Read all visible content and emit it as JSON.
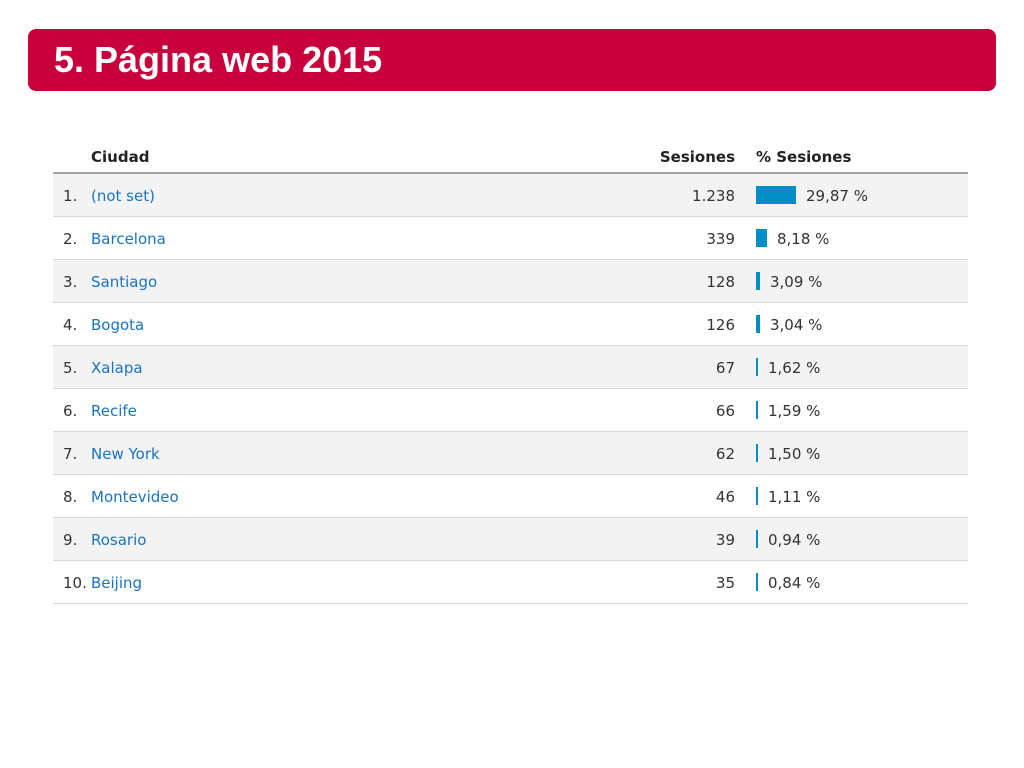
{
  "slide": {
    "title": "5. Página web 2015",
    "accent_color": "#c8003c"
  },
  "table": {
    "headers": {
      "city": "Ciudad",
      "sessions": "Sesiones",
      "percent": "% Sesiones"
    },
    "bar_color": "#058dc7",
    "link_color": "#1a73c2",
    "rows": [
      {
        "rank": "1.",
        "city": "(not set)",
        "sessions": "1.238",
        "percent": "29,87 %",
        "share": 29.87
      },
      {
        "rank": "2.",
        "city": "Barcelona",
        "sessions": "339",
        "percent": "8,18 %",
        "share": 8.18
      },
      {
        "rank": "3.",
        "city": "Santiago",
        "sessions": "128",
        "percent": "3,09 %",
        "share": 3.09
      },
      {
        "rank": "4.",
        "city": "Bogota",
        "sessions": "126",
        "percent": "3,04 %",
        "share": 3.04
      },
      {
        "rank": "5.",
        "city": "Xalapa",
        "sessions": "67",
        "percent": "1,62 %",
        "share": 1.62
      },
      {
        "rank": "6.",
        "city": "Recife",
        "sessions": "66",
        "percent": "1,59 %",
        "share": 1.59
      },
      {
        "rank": "7.",
        "city": "New York",
        "sessions": "62",
        "percent": "1,50 %",
        "share": 1.5
      },
      {
        "rank": "8.",
        "city": "Montevideo",
        "sessions": "46",
        "percent": "1,11 %",
        "share": 1.11
      },
      {
        "rank": "9.",
        "city": "Rosario",
        "sessions": "39",
        "percent": "0,94 %",
        "share": 0.94
      },
      {
        "rank": "10.",
        "city": "Beijing",
        "sessions": "35",
        "percent": "0,84 %",
        "share": 0.84
      }
    ]
  }
}
